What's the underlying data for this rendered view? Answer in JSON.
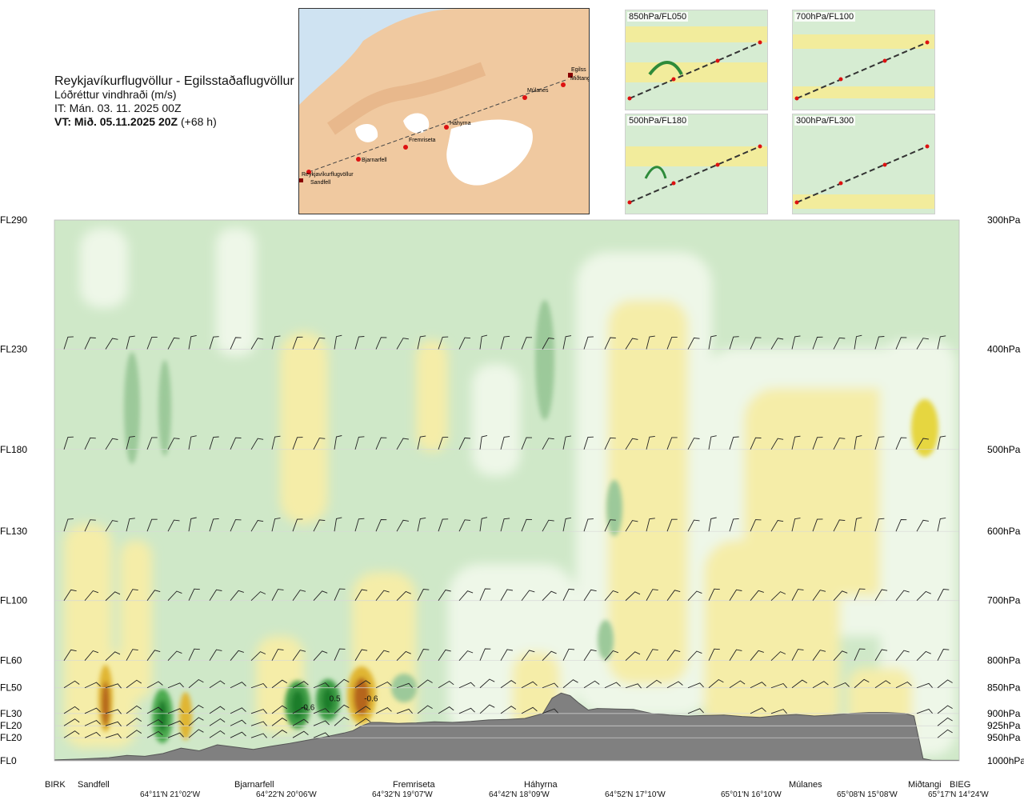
{
  "title": {
    "route": "Reykjavíkurflugvöllur - Egilsstaðaflugvöllur",
    "variable": "Lóðréttur vindhraði (m/s)",
    "issue_time": "IT: Mán. 03. 11. 2025 00Z",
    "valid_time": "VT: Mið. 05.11.2025 20Z",
    "lead": " (+68 h)"
  },
  "map": {
    "labels": [
      "Reykjavíkurflugvöllur",
      "Sandfell",
      "Bjarnarfell",
      "Fremriseta",
      "Háhyrna",
      "Múlanes",
      "Egilss",
      "Miðtangi"
    ]
  },
  "mini_maps": [
    {
      "label": "850hPa/FL050"
    },
    {
      "label": "700hPa/FL100"
    },
    {
      "label": "500hPa/FL180"
    },
    {
      "label": "300hPa/FL300"
    }
  ],
  "colors": {
    "bg_green": "#cfe8c8",
    "pale": "#eef7e8",
    "yellow": "#f5eda8",
    "terrain": "#808080",
    "dark_green": "#2e8b3a",
    "brown": "#b5651d"
  },
  "chart_data": {
    "type": "heatmap",
    "title": "Lóðréttur vindhraði (m/s)",
    "x_stations": [
      "BIRK",
      "Sandfell",
      "Bjarnarfell",
      "Fremriseta",
      "Háhyrna",
      "Múlanes",
      "Miðtangi",
      "BIEG"
    ],
    "x_coords": [
      "64°11'N 21°02'W",
      "64°22'N 20°06'W",
      "64°32'N 19°07'W",
      "64°42'N 18°09'W",
      "64°52'N 17°10'W",
      "65°01'N 16°10'W",
      "65°08'N 15°08'W",
      "65°17'N 14°24'W"
    ],
    "y_left_levels": [
      "FL290",
      "FL230",
      "FL180",
      "FL130",
      "FL100",
      "FL60",
      "FL50",
      "FL30",
      "FL20",
      "FL20",
      "FL0"
    ],
    "y_right_levels": [
      "300hPa",
      "400hPa",
      "500hPa",
      "600hPa",
      "700hPa",
      "800hPa",
      "850hPa",
      "900hPa",
      "925hPa",
      "950hPa",
      "1000hPa"
    ],
    "contour_labels": [
      {
        "text": "-0.6",
        "x": 0.28,
        "p": 893
      },
      {
        "text": "0.5",
        "x": 0.31,
        "p": 876
      },
      {
        "text": "-0.6",
        "x": 0.35,
        "p": 876
      }
    ],
    "terrain_profile": {
      "x": [
        0.0,
        0.03,
        0.06,
        0.08,
        0.1,
        0.12,
        0.14,
        0.16,
        0.18,
        0.2,
        0.22,
        0.24,
        0.26,
        0.28,
        0.3,
        0.32,
        0.33,
        0.34,
        0.35,
        0.36,
        0.38,
        0.4,
        0.42,
        0.44,
        0.46,
        0.48,
        0.5,
        0.52,
        0.54,
        0.55,
        0.56,
        0.57,
        0.58,
        0.59,
        0.6,
        0.62,
        0.64,
        0.66,
        0.68,
        0.7,
        0.72,
        0.74,
        0.76,
        0.78,
        0.8,
        0.82,
        0.84,
        0.86,
        0.88,
        0.9,
        0.92,
        0.94,
        0.95,
        0.96,
        0.97,
        1.0
      ],
      "p": [
        998,
        996,
        993,
        988,
        990,
        984,
        972,
        978,
        965,
        970,
        975,
        968,
        962,
        955,
        948,
        940,
        935,
        925,
        918,
        918,
        920,
        919,
        917,
        918,
        916,
        913,
        912,
        910,
        900,
        870,
        860,
        865,
        880,
        893,
        890,
        891,
        892,
        900,
        903,
        905,
        904,
        903,
        906,
        908,
        904,
        902,
        905,
        903,
        900,
        898,
        898,
        900,
        905,
        995,
        999,
        999
      ]
    },
    "ylim_hPa": [
      300,
      1000
    ]
  }
}
